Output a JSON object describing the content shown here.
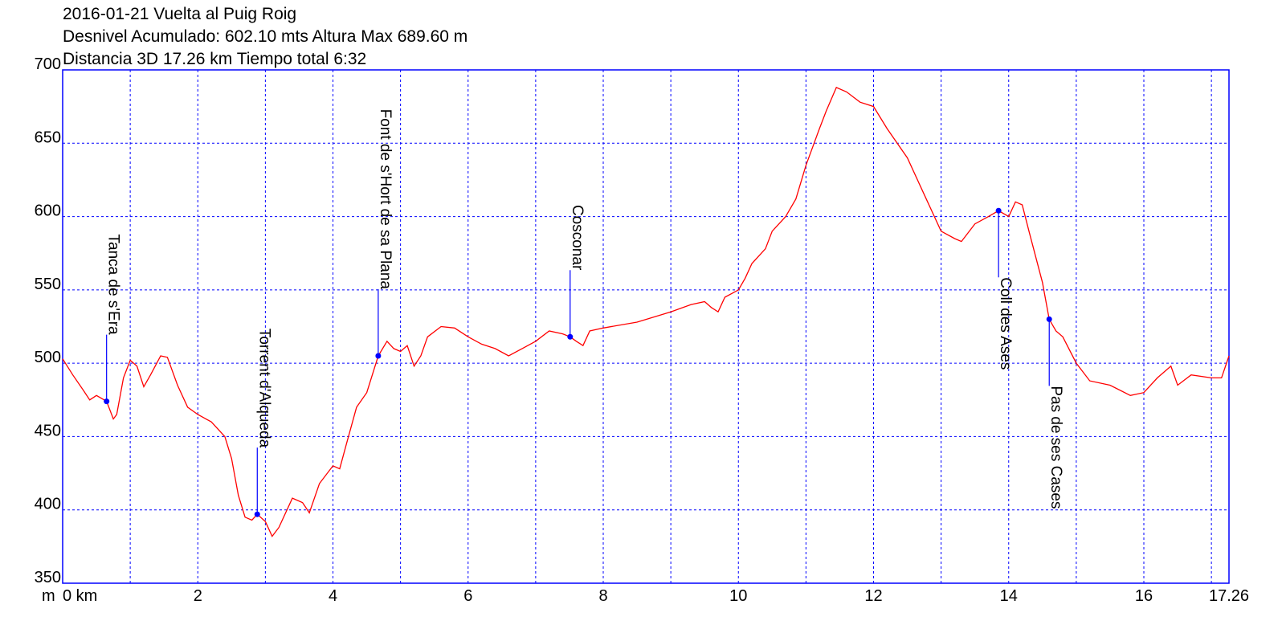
{
  "chart_data": {
    "type": "line",
    "title_lines": [
      "2016-01-21 Vuelta al Puig Roig",
      "Desnivel Acumulado: 602.10 mts  Altura Max 689.60 m",
      "Distancia 3D 17.26 km  Tiempo total 6:32"
    ],
    "y_unit_label": "m",
    "xlim": [
      0,
      17.26
    ],
    "ylim": [
      350,
      700
    ],
    "xticks": [
      {
        "value": 0,
        "label": "0 km"
      },
      2,
      4,
      6,
      8,
      10,
      12,
      14,
      16,
      17.26
    ],
    "x_gridlines": [
      1,
      2,
      3,
      4,
      5,
      6,
      7,
      8,
      9,
      10,
      11,
      12,
      13,
      14,
      15,
      16,
      17
    ],
    "yticks": [
      350,
      400,
      450,
      500,
      550,
      600,
      650,
      700
    ],
    "grid": true,
    "grid_color": "#0000ff",
    "series": [
      {
        "color": "#ff0000",
        "x": [
          0.0,
          0.15,
          0.3,
          0.4,
          0.5,
          0.65,
          0.75,
          0.8,
          0.9,
          1.0,
          1.1,
          1.2,
          1.3,
          1.45,
          1.55,
          1.7,
          1.85,
          2.0,
          2.2,
          2.4,
          2.5,
          2.6,
          2.7,
          2.8,
          2.88,
          3.0,
          3.1,
          3.2,
          3.4,
          3.55,
          3.65,
          3.8,
          4.0,
          4.1,
          4.2,
          4.35,
          4.5,
          4.67,
          4.8,
          4.9,
          5.0,
          5.1,
          5.2,
          5.3,
          5.4,
          5.6,
          5.8,
          6.0,
          6.2,
          6.4,
          6.6,
          6.8,
          7.0,
          7.2,
          7.4,
          7.51,
          7.6,
          7.7,
          7.8,
          8.0,
          8.5,
          9.0,
          9.3,
          9.5,
          9.6,
          9.7,
          9.8,
          10.0,
          10.1,
          10.2,
          10.4,
          10.5,
          10.7,
          10.85,
          11.0,
          11.2,
          11.3,
          11.45,
          11.6,
          11.8,
          12.0,
          12.2,
          12.5,
          12.8,
          13.0,
          13.2,
          13.3,
          13.5,
          13.7,
          13.85,
          14.0,
          14.1,
          14.2,
          14.3,
          14.5,
          14.6,
          14.7,
          14.8,
          15.0,
          15.2,
          15.5,
          15.8,
          16.0,
          16.2,
          16.4,
          16.5,
          16.7,
          17.0,
          17.15,
          17.26
        ],
        "values": [
          503,
          492,
          482,
          475,
          478,
          474,
          462,
          465,
          490,
          502,
          498,
          484,
          492,
          505,
          504,
          485,
          470,
          465,
          460,
          450,
          435,
          410,
          395,
          393,
          397,
          392,
          382,
          388,
          408,
          405,
          398,
          418,
          430,
          428,
          445,
          470,
          480,
          505,
          515,
          510,
          508,
          512,
          498,
          505,
          518,
          525,
          524,
          518,
          513,
          510,
          505,
          510,
          515,
          522,
          520,
          518,
          515,
          512,
          522,
          524,
          528,
          535,
          540,
          542,
          538,
          535,
          545,
          550,
          558,
          568,
          578,
          590,
          600,
          612,
          635,
          660,
          672,
          688,
          685,
          678,
          675,
          660,
          640,
          610,
          590,
          585,
          583,
          595,
          600,
          604,
          600,
          610,
          608,
          590,
          555,
          530,
          522,
          518,
          500,
          488,
          485,
          478,
          480,
          490,
          498,
          485,
          492,
          490,
          490,
          505
        ]
      }
    ],
    "marker_color": "#0000ff",
    "annotations": [
      {
        "label": "Tanca de s'Era",
        "x": 0.65,
        "y": 474
      },
      {
        "label": "Torrent d'Alqueda",
        "x": 2.88,
        "y": 397
      },
      {
        "label": "Font de s'Hort de sa Plana",
        "x": 4.67,
        "y": 505
      },
      {
        "label": "Cosconar",
        "x": 7.51,
        "y": 518
      },
      {
        "label": "Coll des Ases",
        "x": 13.85,
        "y": 604
      },
      {
        "label": "Pas de ses Cases",
        "x": 14.6,
        "y": 530
      }
    ]
  }
}
